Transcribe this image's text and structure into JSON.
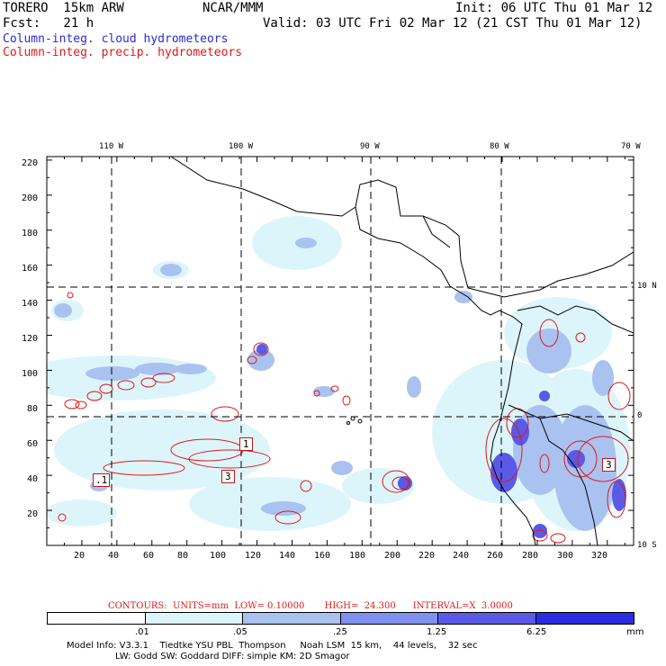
{
  "header": {
    "model": "TORERO  15km ARW",
    "org": "NCAR/MMM",
    "init": "Init: 06 UTC Thu 01 Mar 12",
    "fcst": "Fcst:   21 h",
    "valid": "Valid: 03 UTC Fri 02 Mar 12 (21 CST Thu 01 Mar 12)",
    "legend_cloud": "Column-integ. cloud hydrometeors",
    "legend_precip": "Column-integ. precip. hydrometeors"
  },
  "map": {
    "top_lon_labels": [
      "110 W",
      "100 W",
      "90 W",
      "80 W",
      "70 W"
    ],
    "left_y_labels": [
      "220",
      "200",
      "180",
      "160",
      "140",
      "120",
      "100",
      "80",
      "60",
      "40",
      "20"
    ],
    "bottom_x_labels": [
      "20",
      "40",
      "60",
      "80",
      "100",
      "120",
      "140",
      "160",
      "180",
      "200",
      "220",
      "240",
      "260",
      "280",
      "300",
      "320"
    ],
    "right_lat_labels": [
      "10 N",
      "0",
      "10 S"
    ],
    "boxes": [
      ".1",
      "1",
      "3",
      "3"
    ]
  },
  "contours": "CONTOURS:  UNITS=mm  LOW= 0.10000       HIGH=  24.300      INTERVAL=X  3.0000",
  "colorbar": {
    "labels": [
      ".01",
      ".05",
      ".25",
      "1.25",
      "6.25"
    ],
    "unit": "mm",
    "colors": [
      "#ffffff",
      "#dcf5fb",
      "#aac2f0",
      "#8090ee",
      "#5a5ae6",
      "#2c2ce0"
    ]
  },
  "info": {
    "line1": "Model Info: V3.3.1    Tiedtke YSU PBL  Thompson     Noah LSM  15 km,    44 levels,    32 sec",
    "line2": "                 LW: Godd SW: Goddard DIFF: simple KM: 2D Smagor"
  }
}
